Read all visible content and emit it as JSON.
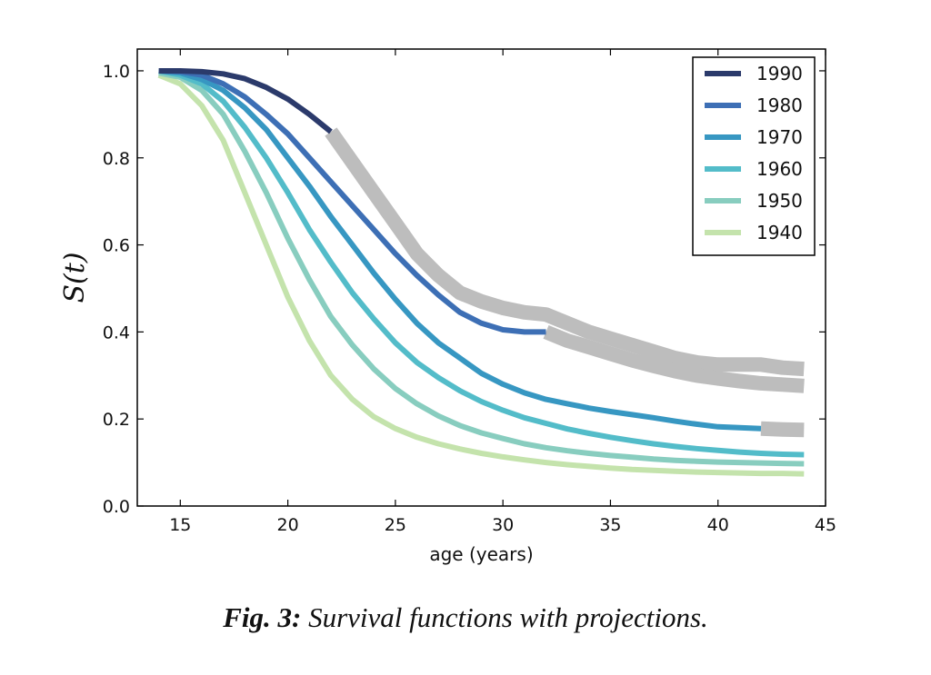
{
  "chart_data": {
    "type": "line",
    "title": "",
    "xlabel": "age (years)",
    "ylabel": "S(t)",
    "xlim": [
      13,
      45
    ],
    "ylim": [
      0,
      1.05
    ],
    "xticks": [
      15,
      20,
      25,
      30,
      35,
      40,
      45
    ],
    "yticks": [
      0.0,
      0.2,
      0.4,
      0.6,
      0.8,
      1.0
    ],
    "xtick_labels": [
      "15",
      "20",
      "25",
      "30",
      "35",
      "40",
      "45"
    ],
    "ytick_labels": [
      "0.0",
      "0.2",
      "0.4",
      "0.6",
      "0.8",
      "1.0"
    ],
    "grid": false,
    "legend_position": "top-right",
    "series": [
      {
        "name": "1990",
        "color": "#2b3a6b",
        "x": [
          14,
          15,
          16,
          17,
          18,
          19,
          20,
          21,
          22
        ],
        "values": [
          1.0,
          1.0,
          0.998,
          0.993,
          0.982,
          0.962,
          0.935,
          0.9,
          0.86
        ]
      },
      {
        "name": "1980",
        "color": "#3d6fb5",
        "x": [
          14,
          15,
          16,
          17,
          18,
          19,
          20,
          21,
          22,
          23,
          24,
          25,
          26,
          27,
          28,
          29,
          30,
          31,
          32
        ],
        "values": [
          1.0,
          0.998,
          0.99,
          0.97,
          0.94,
          0.9,
          0.855,
          0.8,
          0.745,
          0.69,
          0.635,
          0.58,
          0.53,
          0.485,
          0.445,
          0.42,
          0.405,
          0.4,
          0.4
        ]
      },
      {
        "name": "1970",
        "color": "#3797c2",
        "x": [
          14,
          15,
          16,
          17,
          18,
          19,
          20,
          21,
          22,
          23,
          24,
          25,
          26,
          27,
          28,
          29,
          30,
          31,
          32,
          33,
          34,
          35,
          36,
          37,
          38,
          39,
          40,
          41,
          42
        ],
        "values": [
          1.0,
          0.995,
          0.98,
          0.955,
          0.915,
          0.865,
          0.8,
          0.735,
          0.665,
          0.6,
          0.535,
          0.475,
          0.42,
          0.375,
          0.34,
          0.305,
          0.28,
          0.26,
          0.245,
          0.235,
          0.225,
          0.217,
          0.21,
          0.203,
          0.195,
          0.188,
          0.182,
          0.18,
          0.178
        ]
      },
      {
        "name": "1960",
        "color": "#53bcc9",
        "x": [
          14,
          15,
          16,
          17,
          18,
          19,
          20,
          21,
          22,
          23,
          24,
          25,
          26,
          27,
          28,
          29,
          30,
          31,
          32,
          33,
          34,
          35,
          36,
          37,
          38,
          39,
          40,
          41,
          42,
          43,
          44
        ],
        "values": [
          1.0,
          0.99,
          0.97,
          0.93,
          0.87,
          0.8,
          0.72,
          0.635,
          0.56,
          0.49,
          0.43,
          0.375,
          0.33,
          0.295,
          0.265,
          0.24,
          0.22,
          0.203,
          0.19,
          0.177,
          0.167,
          0.158,
          0.15,
          0.143,
          0.137,
          0.132,
          0.128,
          0.124,
          0.121,
          0.119,
          0.118
        ]
      },
      {
        "name": "1950",
        "color": "#88cdbf",
        "x": [
          14,
          15,
          16,
          17,
          18,
          19,
          20,
          21,
          22,
          23,
          24,
          25,
          26,
          27,
          28,
          29,
          30,
          31,
          32,
          33,
          34,
          35,
          36,
          37,
          38,
          39,
          40,
          41,
          42,
          43,
          44
        ],
        "values": [
          0.995,
          0.985,
          0.955,
          0.9,
          0.815,
          0.72,
          0.615,
          0.52,
          0.435,
          0.37,
          0.315,
          0.27,
          0.235,
          0.207,
          0.185,
          0.168,
          0.155,
          0.143,
          0.134,
          0.127,
          0.121,
          0.116,
          0.112,
          0.108,
          0.105,
          0.103,
          0.101,
          0.1,
          0.099,
          0.098,
          0.097
        ]
      },
      {
        "name": "1940",
        "color": "#c4e3ac",
        "x": [
          14,
          15,
          16,
          17,
          18,
          19,
          20,
          21,
          22,
          23,
          24,
          25,
          26,
          27,
          28,
          29,
          30,
          31,
          32,
          33,
          34,
          35,
          36,
          37,
          38,
          39,
          40,
          41,
          42,
          43,
          44
        ],
        "values": [
          0.99,
          0.97,
          0.92,
          0.84,
          0.72,
          0.6,
          0.48,
          0.38,
          0.3,
          0.245,
          0.205,
          0.178,
          0.158,
          0.143,
          0.131,
          0.121,
          0.113,
          0.106,
          0.1,
          0.095,
          0.091,
          0.087,
          0.084,
          0.082,
          0.08,
          0.078,
          0.077,
          0.076,
          0.075,
          0.075,
          0.074
        ]
      }
    ],
    "projections": [
      {
        "color": "#bdbdbd",
        "x": [
          22,
          23,
          24,
          25,
          26,
          27,
          28,
          29,
          30,
          31,
          32,
          33,
          34,
          35,
          36,
          37,
          38,
          39,
          40,
          41,
          42,
          43,
          44
        ],
        "values": [
          0.86,
          0.79,
          0.72,
          0.65,
          0.58,
          0.53,
          0.49,
          0.47,
          0.455,
          0.445,
          0.44,
          0.42,
          0.4,
          0.385,
          0.37,
          0.355,
          0.34,
          0.33,
          0.325,
          0.325,
          0.325,
          0.318,
          0.315
        ]
      },
      {
        "color": "#bdbdbd",
        "x": [
          32,
          33,
          34,
          35,
          36,
          37,
          38,
          39,
          40,
          41,
          42,
          43,
          44
        ],
        "values": [
          0.4,
          0.38,
          0.365,
          0.35,
          0.335,
          0.322,
          0.31,
          0.3,
          0.293,
          0.287,
          0.282,
          0.279,
          0.276
        ]
      },
      {
        "color": "#bdbdbd",
        "x": [
          42,
          43,
          44
        ],
        "values": [
          0.178,
          0.176,
          0.175
        ]
      }
    ]
  },
  "caption": {
    "prefix": "Fig. 3:",
    "text": " Survival functions with projections."
  }
}
